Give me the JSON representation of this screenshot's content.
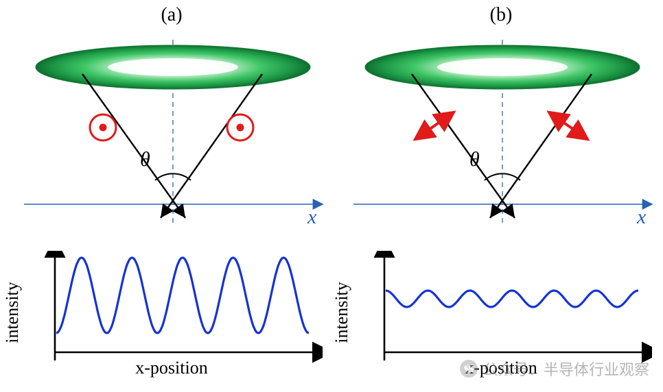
{
  "panels": {
    "a": {
      "label": "(a)"
    },
    "b": {
      "label": "(b)"
    }
  },
  "diagram": {
    "theta_label": "θ",
    "x_label": "x",
    "ring": {
      "fill_outer": "#22a64a",
      "fill_inner": "#d7f4d7",
      "stroke": "#137b33"
    },
    "axis_color": "#2962b5",
    "centerline_color": "#4a78b8",
    "ray_color": "#000000",
    "polarization": {
      "out_of_plane_stroke": "#e11a1a",
      "out_of_plane_fill": "#ffffff",
      "arrow_color": "#e11a1a"
    },
    "theta_arc_color": "#000000"
  },
  "charts": {
    "y_label": "intensity",
    "x_label": "x-position",
    "axis_color": "#000000",
    "wave_color": "#1532d6",
    "a": {
      "amplitude": 55,
      "baseline": 120,
      "periods": 5,
      "phase": 0,
      "stroke_width": 3
    },
    "b": {
      "amplitude": 12,
      "baseline": 70,
      "periods": 6,
      "phase": 0,
      "stroke_width": 3
    }
  },
  "watermark": {
    "text": "公众号：半导体行业观察",
    "color": "rgba(120,120,120,0.55)"
  }
}
